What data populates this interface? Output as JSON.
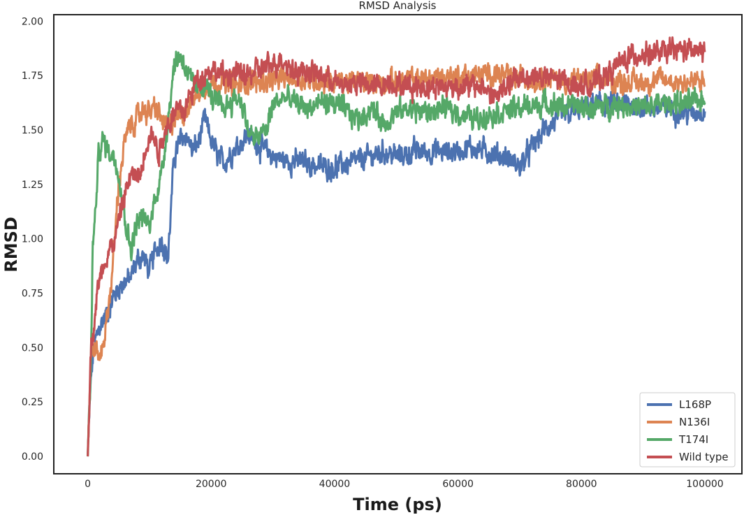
{
  "chart_data": {
    "type": "line",
    "title": "RMSD Analysis",
    "xlabel": "Time (ps)",
    "ylabel": "RMSD",
    "xlim": [
      -5500,
      106000
    ],
    "ylim": [
      -0.08,
      2.03
    ],
    "xticks": [
      0,
      20000,
      40000,
      60000,
      80000,
      100000
    ],
    "yticks": [
      0.0,
      0.25,
      0.5,
      0.75,
      1.0,
      1.25,
      1.5,
      1.75,
      2.0
    ],
    "xtick_labels": [
      "0",
      "20000",
      "40000",
      "60000",
      "80000",
      "100000"
    ],
    "ytick_labels": [
      "0.00",
      "0.25",
      "0.50",
      "0.75",
      "1.00",
      "1.25",
      "1.50",
      "1.75",
      "2.00"
    ],
    "grid": false,
    "legend_position": "lower-right",
    "series": [
      {
        "name": "L168P",
        "color": "#4c72b0",
        "points": [
          [
            0,
            0.0
          ],
          [
            500,
            0.35
          ],
          [
            1000,
            0.5
          ],
          [
            2000,
            0.6
          ],
          [
            3000,
            0.65
          ],
          [
            4000,
            0.72
          ],
          [
            5000,
            0.78
          ],
          [
            6000,
            0.8
          ],
          [
            7000,
            0.82
          ],
          [
            8000,
            0.9
          ],
          [
            9000,
            0.92
          ],
          [
            10000,
            0.85
          ],
          [
            11000,
            0.95
          ],
          [
            12000,
            1.0
          ],
          [
            13000,
            0.9
          ],
          [
            14000,
            1.38
          ],
          [
            15000,
            1.45
          ],
          [
            16000,
            1.48
          ],
          [
            17000,
            1.4
          ],
          [
            18000,
            1.45
          ],
          [
            19000,
            1.55
          ],
          [
            20000,
            1.45
          ],
          [
            21000,
            1.38
          ],
          [
            22000,
            1.35
          ],
          [
            24000,
            1.42
          ],
          [
            26000,
            1.48
          ],
          [
            27000,
            1.45
          ],
          [
            28000,
            1.42
          ],
          [
            30000,
            1.38
          ],
          [
            32000,
            1.36
          ],
          [
            35000,
            1.35
          ],
          [
            38000,
            1.33
          ],
          [
            40000,
            1.33
          ],
          [
            43000,
            1.35
          ],
          [
            46000,
            1.38
          ],
          [
            48000,
            1.4
          ],
          [
            50000,
            1.38
          ],
          [
            53000,
            1.4
          ],
          [
            56000,
            1.4
          ],
          [
            59000,
            1.4
          ],
          [
            62000,
            1.42
          ],
          [
            65000,
            1.4
          ],
          [
            68000,
            1.37
          ],
          [
            70000,
            1.33
          ],
          [
            72000,
            1.42
          ],
          [
            74000,
            1.5
          ],
          [
            76000,
            1.55
          ],
          [
            78000,
            1.57
          ],
          [
            80000,
            1.6
          ],
          [
            83000,
            1.62
          ],
          [
            86000,
            1.62
          ],
          [
            88000,
            1.62
          ],
          [
            91000,
            1.6
          ],
          [
            94000,
            1.6
          ],
          [
            97000,
            1.58
          ],
          [
            100000,
            1.59
          ]
        ]
      },
      {
        "name": "N136I",
        "color": "#dd8452",
        "points": [
          [
            0,
            0.0
          ],
          [
            500,
            0.45
          ],
          [
            1000,
            0.5
          ],
          [
            2000,
            0.45
          ],
          [
            3000,
            0.6
          ],
          [
            4000,
            0.85
          ],
          [
            5000,
            1.25
          ],
          [
            6000,
            1.45
          ],
          [
            7000,
            1.52
          ],
          [
            8000,
            1.55
          ],
          [
            9000,
            1.6
          ],
          [
            10000,
            1.58
          ],
          [
            11000,
            1.6
          ],
          [
            12000,
            1.55
          ],
          [
            13000,
            1.5
          ],
          [
            14000,
            1.55
          ],
          [
            16000,
            1.6
          ],
          [
            18000,
            1.68
          ],
          [
            20000,
            1.72
          ],
          [
            22000,
            1.72
          ],
          [
            24000,
            1.7
          ],
          [
            26000,
            1.72
          ],
          [
            28000,
            1.72
          ],
          [
            30000,
            1.73
          ],
          [
            33000,
            1.74
          ],
          [
            36000,
            1.73
          ],
          [
            40000,
            1.72
          ],
          [
            44000,
            1.72
          ],
          [
            48000,
            1.72
          ],
          [
            52000,
            1.73
          ],
          [
            56000,
            1.74
          ],
          [
            60000,
            1.75
          ],
          [
            63000,
            1.75
          ],
          [
            66000,
            1.76
          ],
          [
            69000,
            1.74
          ],
          [
            72000,
            1.73
          ],
          [
            75000,
            1.74
          ],
          [
            78000,
            1.72
          ],
          [
            81000,
            1.73
          ],
          [
            84000,
            1.73
          ],
          [
            87000,
            1.72
          ],
          [
            90000,
            1.72
          ],
          [
            93000,
            1.73
          ],
          [
            96000,
            1.72
          ],
          [
            100000,
            1.72
          ]
        ]
      },
      {
        "name": "T174I",
        "color": "#55a868",
        "points": [
          [
            0,
            0.0
          ],
          [
            500,
            0.4
          ],
          [
            800,
            0.95
          ],
          [
            1200,
            1.1
          ],
          [
            1800,
            1.4
          ],
          [
            2500,
            1.45
          ],
          [
            3500,
            1.4
          ],
          [
            4200,
            1.38
          ],
          [
            5000,
            1.32
          ],
          [
            6000,
            1.1
          ],
          [
            7000,
            0.95
          ],
          [
            8000,
            1.08
          ],
          [
            9000,
            1.1
          ],
          [
            10000,
            1.05
          ],
          [
            11000,
            1.2
          ],
          [
            12000,
            1.3
          ],
          [
            13000,
            1.55
          ],
          [
            14000,
            1.8
          ],
          [
            15000,
            1.85
          ],
          [
            16000,
            1.78
          ],
          [
            17000,
            1.7
          ],
          [
            18000,
            1.68
          ],
          [
            19000,
            1.72
          ],
          [
            20000,
            1.65
          ],
          [
            22000,
            1.6
          ],
          [
            24000,
            1.65
          ],
          [
            25000,
            1.63
          ],
          [
            26000,
            1.5
          ],
          [
            27000,
            1.45
          ],
          [
            28000,
            1.48
          ],
          [
            29000,
            1.5
          ],
          [
            30000,
            1.62
          ],
          [
            32000,
            1.65
          ],
          [
            34000,
            1.62
          ],
          [
            36000,
            1.6
          ],
          [
            38000,
            1.63
          ],
          [
            40000,
            1.62
          ],
          [
            42000,
            1.58
          ],
          [
            44000,
            1.55
          ],
          [
            46000,
            1.6
          ],
          [
            48000,
            1.53
          ],
          [
            50000,
            1.58
          ],
          [
            52000,
            1.6
          ],
          [
            55000,
            1.58
          ],
          [
            58000,
            1.6
          ],
          [
            60000,
            1.58
          ],
          [
            63000,
            1.55
          ],
          [
            66000,
            1.58
          ],
          [
            70000,
            1.6
          ],
          [
            74000,
            1.62
          ],
          [
            78000,
            1.61
          ],
          [
            82000,
            1.6
          ],
          [
            86000,
            1.62
          ],
          [
            90000,
            1.6
          ],
          [
            94000,
            1.63
          ],
          [
            97000,
            1.62
          ],
          [
            100000,
            1.64
          ]
        ]
      },
      {
        "name": "Wild type",
        "color": "#c44e52",
        "points": [
          [
            0,
            0.0
          ],
          [
            500,
            0.5
          ],
          [
            1000,
            0.6
          ],
          [
            1500,
            0.75
          ],
          [
            2500,
            0.88
          ],
          [
            3500,
            0.95
          ],
          [
            4500,
            1.0
          ],
          [
            5500,
            1.15
          ],
          [
            6500,
            1.25
          ],
          [
            7500,
            1.3
          ],
          [
            8500,
            1.28
          ],
          [
            9500,
            1.45
          ],
          [
            10500,
            1.48
          ],
          [
            11500,
            1.4
          ],
          [
            12500,
            1.5
          ],
          [
            13500,
            1.55
          ],
          [
            14500,
            1.6
          ],
          [
            15500,
            1.58
          ],
          [
            16500,
            1.65
          ],
          [
            17500,
            1.72
          ],
          [
            18500,
            1.75
          ],
          [
            20000,
            1.78
          ],
          [
            22000,
            1.75
          ],
          [
            24000,
            1.76
          ],
          [
            26000,
            1.75
          ],
          [
            28000,
            1.78
          ],
          [
            30000,
            1.8
          ],
          [
            31500,
            1.83
          ],
          [
            33000,
            1.78
          ],
          [
            35000,
            1.77
          ],
          [
            37000,
            1.76
          ],
          [
            39000,
            1.74
          ],
          [
            41000,
            1.7
          ],
          [
            43000,
            1.72
          ],
          [
            46000,
            1.7
          ],
          [
            49000,
            1.72
          ],
          [
            52000,
            1.7
          ],
          [
            55000,
            1.7
          ],
          [
            58000,
            1.7
          ],
          [
            61000,
            1.7
          ],
          [
            64000,
            1.7
          ],
          [
            66000,
            1.65
          ],
          [
            68000,
            1.7
          ],
          [
            70000,
            1.74
          ],
          [
            72000,
            1.75
          ],
          [
            74000,
            1.74
          ],
          [
            76000,
            1.73
          ],
          [
            78000,
            1.72
          ],
          [
            80000,
            1.7
          ],
          [
            82000,
            1.72
          ],
          [
            84000,
            1.75
          ],
          [
            86000,
            1.8
          ],
          [
            88000,
            1.84
          ],
          [
            90000,
            1.85
          ],
          [
            92000,
            1.85
          ],
          [
            94000,
            1.86
          ],
          [
            96000,
            1.87
          ],
          [
            98000,
            1.86
          ],
          [
            100000,
            1.86
          ]
        ]
      }
    ]
  }
}
